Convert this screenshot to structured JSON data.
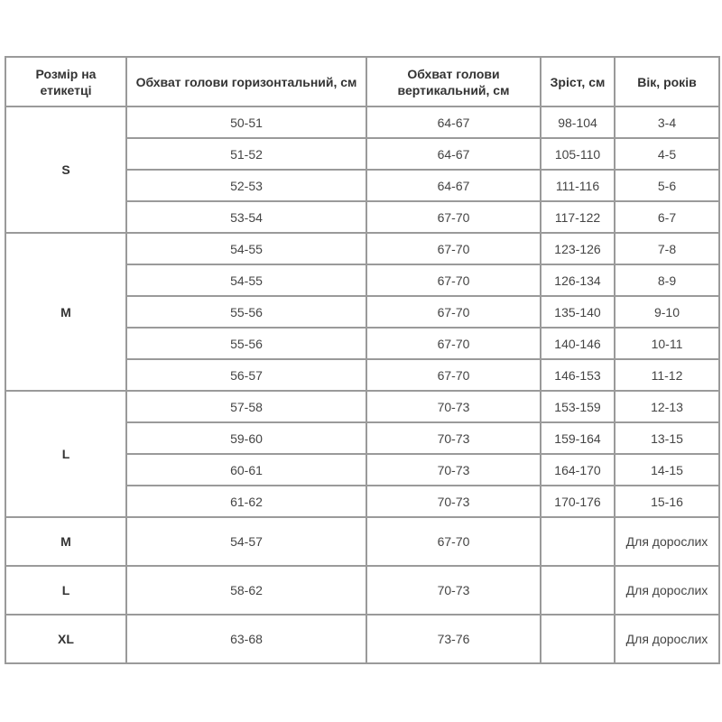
{
  "headers": [
    "Розмір на етикетці",
    "Обхват голови горизонтальний, см",
    "Обхват голови вертикальний, см",
    "Зріст, см",
    "Вік, років"
  ],
  "groups": [
    {
      "size": "S",
      "rows": [
        [
          "50-51",
          "64-67",
          "98-104",
          "3-4"
        ],
        [
          "51-52",
          "64-67",
          "105-110",
          "4-5"
        ],
        [
          "52-53",
          "64-67",
          "111-116",
          "5-6"
        ],
        [
          "53-54",
          "67-70",
          "117-122",
          "6-7"
        ]
      ]
    },
    {
      "size": "M",
      "rows": [
        [
          "54-55",
          "67-70",
          "123-126",
          "7-8"
        ],
        [
          "54-55",
          "67-70",
          "126-134",
          "8-9"
        ],
        [
          "55-56",
          "67-70",
          "135-140",
          "9-10"
        ],
        [
          "55-56",
          "67-70",
          "140-146",
          "10-11"
        ],
        [
          "56-57",
          "67-70",
          "146-153",
          "11-12"
        ]
      ]
    },
    {
      "size": "L",
      "rows": [
        [
          "57-58",
          "70-73",
          "153-159",
          "12-13"
        ],
        [
          "59-60",
          "70-73",
          "159-164",
          "13-15"
        ],
        [
          "60-61",
          "70-73",
          "164-170",
          "14-15"
        ],
        [
          "61-62",
          "70-73",
          "170-176",
          "15-16"
        ]
      ]
    },
    {
      "size": "M",
      "adult": true,
      "rows": [
        [
          "54-57",
          "67-70",
          "",
          "Для дорослих"
        ]
      ]
    },
    {
      "size": "L",
      "adult": true,
      "rows": [
        [
          "58-62",
          "70-73",
          "",
          "Для дорослих"
        ]
      ]
    },
    {
      "size": "XL",
      "adult": true,
      "rows": [
        [
          "63-68",
          "73-76",
          "",
          "Для дорослих"
        ]
      ]
    }
  ]
}
